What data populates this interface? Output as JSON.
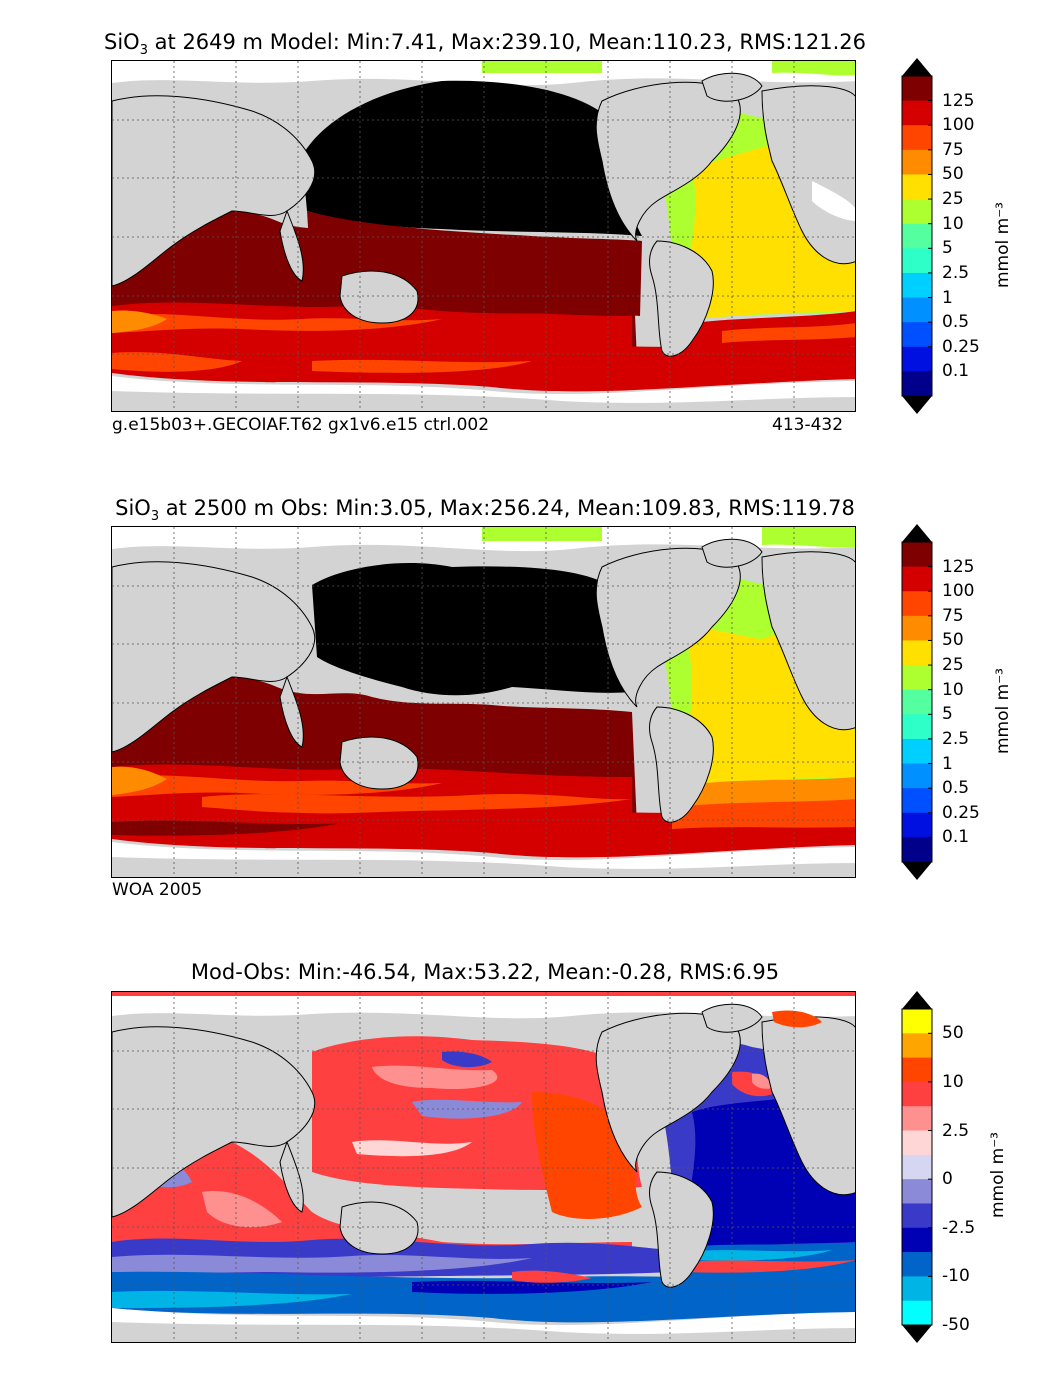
{
  "panels": [
    {
      "title_prefix": "SiO",
      "title_sub": "3",
      "title_rest": " at 2649 m Model: Min:7.41, Max:239.10, Mean:110.23, RMS:121.26",
      "caption_left": "g.e15b03+.GECOIAF.T62 gx1v6.e15 ctrl.002",
      "caption_right": "413-432"
    },
    {
      "title_prefix": "SiO",
      "title_sub": "3",
      "title_rest": " at 2500 m Obs: Min:3.05, Max:256.24, Mean:109.83, RMS:119.78",
      "caption_left": "WOA 2005",
      "caption_right": ""
    },
    {
      "title_prefix": "Mod-Obs: Min:-46.54, Max:53.22, Mean:-0.28, RMS:6.95",
      "title_sub": "",
      "title_rest": "",
      "caption_left": "",
      "caption_right": ""
    }
  ],
  "colorbar_conc": {
    "labels": [
      "125",
      "100",
      "75",
      "50",
      "25",
      "10",
      "5",
      "2.5",
      "1",
      "0.5",
      "0.25",
      "0.1"
    ],
    "colors_top_to_bottom": [
      "#7f0000",
      "#d40000",
      "#ff4500",
      "#ff8c00",
      "#ffe000",
      "#adff2f",
      "#54ff9f",
      "#2effc8",
      "#00d0ff",
      "#0090ff",
      "#0050ff",
      "#0010e0",
      "#00008b"
    ],
    "unit": "mmol m⁻³",
    "over_color": "#000000",
    "under_color": "#000000"
  },
  "colorbar_diff": {
    "labels": [
      "50",
      "10",
      "2.5",
      "0",
      "-2.5",
      "-10",
      "-50"
    ],
    "colors_top_to_bottom": [
      "#ffff00",
      "#ffa500",
      "#ff4500",
      "#ff4040",
      "#ff9090",
      "#ffd6d6",
      "#d6d6f2",
      "#8a8ad8",
      "#3a3ac8",
      "#0000b4",
      "#0064c8",
      "#00b4e6",
      "#00ffff"
    ],
    "unit": "mmol m⁻³",
    "over_color": "#000000",
    "under_color": "#000000"
  },
  "chart_data": [
    {
      "type": "heatmap",
      "title": "SiO3 at 2649 m Model: Min:7.41, Max:239.10, Mean:110.23, RMS:121.26",
      "field": "SiO3 concentration (model)",
      "depth": "2649 m",
      "stats": {
        "min": 7.41,
        "max": 239.1,
        "mean": 110.23,
        "rms": 121.26
      },
      "colorbar_levels": [
        0.1,
        0.25,
        0.5,
        1,
        2.5,
        5,
        10,
        25,
        50,
        75,
        100,
        125
      ],
      "unit": "mmol m^-3",
      "caption": "g.e15b03+.GECOIAF.T62 gx1v6.e15 ctrl.002",
      "years": "413-432"
    },
    {
      "type": "heatmap",
      "title": "SiO3 at 2500 m Obs: Min:3.05, Max:256.24, Mean:109.83, RMS:119.78",
      "field": "SiO3 concentration (observations)",
      "depth": "2500 m",
      "stats": {
        "min": 3.05,
        "max": 256.24,
        "mean": 109.83,
        "rms": 119.78
      },
      "colorbar_levels": [
        0.1,
        0.25,
        0.5,
        1,
        2.5,
        5,
        10,
        25,
        50,
        75,
        100,
        125
      ],
      "unit": "mmol m^-3",
      "caption": "WOA 2005"
    },
    {
      "type": "heatmap",
      "title": "Mod-Obs: Min:-46.54, Max:53.22, Mean:-0.28, RMS:6.95",
      "field": "Model minus observations",
      "stats": {
        "min": -46.54,
        "max": 53.22,
        "mean": -0.28,
        "rms": 6.95
      },
      "colorbar_labels": [
        50,
        10,
        2.5,
        0,
        -2.5,
        -10,
        -50
      ],
      "unit": "mmol m^-3"
    }
  ]
}
